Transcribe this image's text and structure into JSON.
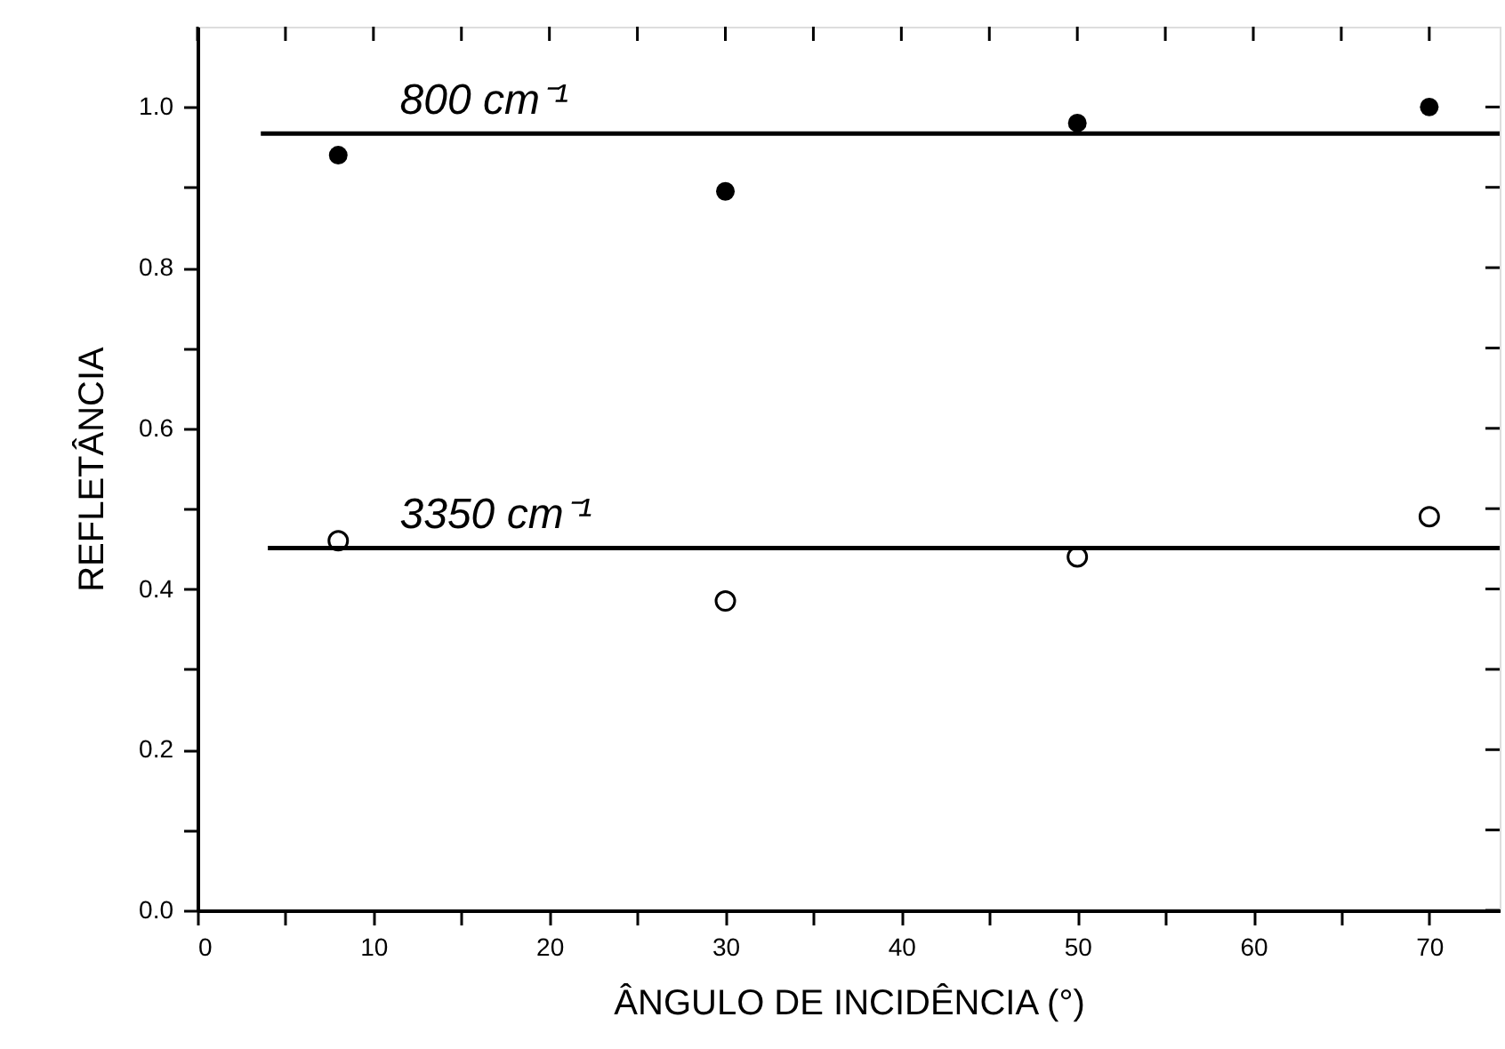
{
  "chart_data": {
    "type": "scatter",
    "xlabel": "ÂNGULO DE INCIDÊNCIA (°)",
    "ylabel": "REFLETÂNCIA",
    "xlim": [
      0,
      74
    ],
    "ylim": [
      0,
      1.1
    ],
    "xticks": [
      0,
      {
        "value": 5,
        "label": null
      },
      10,
      {
        "value": 15,
        "label": null
      },
      20,
      {
        "value": 25,
        "label": null
      },
      30,
      {
        "value": 35,
        "label": null
      },
      40,
      {
        "value": 45,
        "label": null
      },
      50,
      {
        "value": 55,
        "label": null
      },
      60,
      {
        "value": 65,
        "label": null
      },
      70
    ],
    "yticks": [
      {
        "value": 0,
        "label": "0.0"
      },
      {
        "value": 0.1,
        "label": null
      },
      {
        "value": 0.2,
        "label": "0.2"
      },
      {
        "value": 0.3,
        "label": null
      },
      {
        "value": 0.4,
        "label": "0.4"
      },
      {
        "value": 0.5,
        "label": null
      },
      {
        "value": 0.6,
        "label": "0.6"
      },
      {
        "value": 0.7,
        "label": null
      },
      {
        "value": 0.8,
        "label": "0.8"
      },
      {
        "value": 0.9,
        "label": null
      },
      {
        "value": 1.0,
        "label": "1.0"
      }
    ],
    "grid": false,
    "marker": "circle",
    "line_style": "solid",
    "x": [
      8,
      30,
      50,
      70
    ],
    "series": [
      {
        "color": "#000000",
        "values": [
          0.94,
          0.895,
          0.98,
          1.0
        ]
      },
      {
        "color": "#000000",
        "values": [
          0.46,
          0.385,
          0.44,
          0.49
        ]
      },
      {
        "type": "line",
        "marker": "none",
        "color": "#000000",
        "x": [
          3.6,
          74
        ],
        "values": [
          0.967,
          0.967
        ]
      },
      {
        "type": "line",
        "marker": "none",
        "color": "#000000",
        "x": [
          4,
          74
        ],
        "values": [
          0.451,
          0.451
        ]
      }
    ],
    "annotations": [
      {
        "text": "800 cm⁻¹",
        "x": 11.5,
        "y": 0.967
      },
      {
        "text": "3350 cm⁻¹",
        "x": 11.5,
        "y": 0.451
      }
    ]
  }
}
